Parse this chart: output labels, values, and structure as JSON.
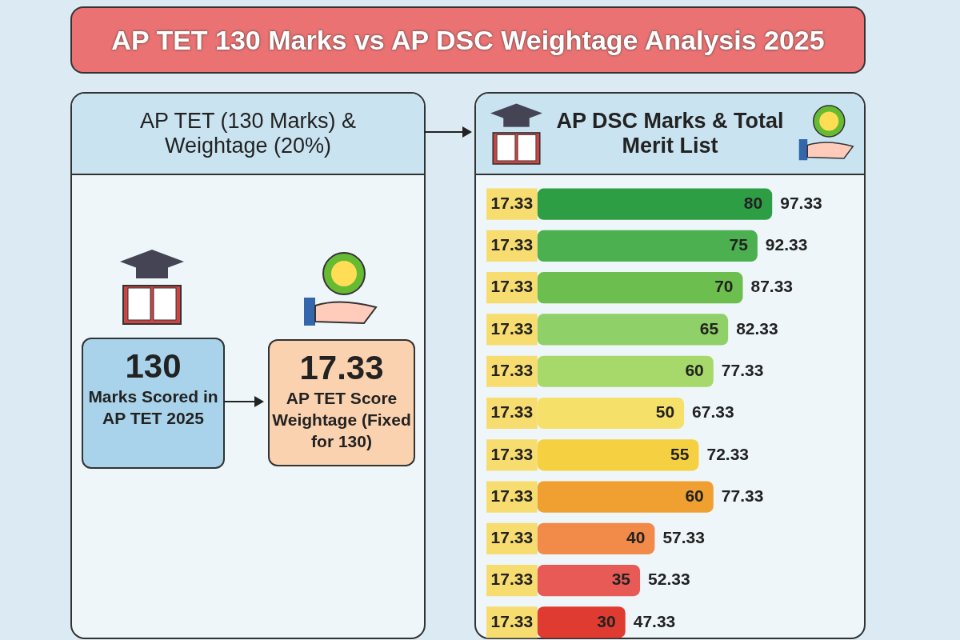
{
  "chart_data": [
    {
      "type": "other",
      "title": "AP TET 130 Marks vs AP DSC Weightage Analysis 2025",
      "subtitle": "AP TET (130 Marks) & Weightage (20%)",
      "annotations": [
        "130",
        "Marks Scored in AP TET 2025",
        "17.33",
        "AP TET Score Weightage (Fixed for 130)"
      ]
    },
    {
      "type": "bar",
      "title": "AP DSC Marks & Total Merit List",
      "orientation": "horizontal",
      "stacked": true,
      "categories": [
        null,
        null,
        null,
        null,
        null,
        null,
        null,
        null,
        null,
        null,
        null
      ],
      "series": [
        {
          "color": "#f7dc6f",
          "values": [
            17.33,
            17.33,
            17.33,
            17.33,
            17.33,
            17.33,
            17.33,
            17.33,
            17.33,
            17.33,
            17.33
          ]
        },
        {
          "colors": [
            "#2e9e45",
            "#4caf50",
            "#6cbf4e",
            "#8fd068",
            "#a6d96a",
            "#f5e06a",
            "#f5d040",
            "#f0a030",
            "#f28a4a",
            "#e85a55",
            "#e03b30"
          ],
          "values": [
            80,
            75,
            70,
            65,
            60,
            50,
            55,
            60,
            40,
            35,
            30
          ]
        }
      ],
      "data_labels": true,
      "totals": [
        "97.33",
        "92.33",
        "87.33",
        "82.33",
        "77.33",
        "67.33",
        "72.33",
        "77.33",
        "57.33",
        "52.33",
        "47.33"
      ]
    }
  ]
}
